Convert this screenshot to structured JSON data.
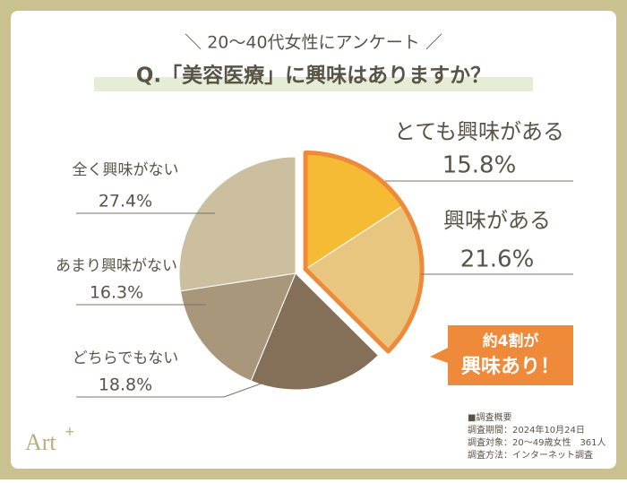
{
  "subtitle": "＼ 20〜40代女性にアンケート ／",
  "chart_data": {
    "type": "pie",
    "title": "Q.「美容医療」に興味はありますか？",
    "categories": [
      "とても興味がある",
      "興味がある",
      "どちらでもない",
      "あまり興味がない",
      "全く興味がない"
    ],
    "values": [
      15.8,
      21.6,
      18.8,
      16.3,
      27.4
    ],
    "value_labels": [
      "15.8%",
      "21.6%",
      "18.8%",
      "16.3%",
      "27.4%"
    ],
    "colors": [
      "#f5bb35",
      "#e8c67f",
      "#847059",
      "#a9977c",
      "#cbbf9f"
    ]
  },
  "callout": [
    "約4割が",
    "興味あり！"
  ],
  "survey": [
    "■調査概要",
    "調査期間：2024年10月24日",
    "調査対象：20〜49歳女性　361人",
    "調査方法：インターネット調査"
  ],
  "logo": {
    "text": "Art",
    "mark": "+"
  }
}
